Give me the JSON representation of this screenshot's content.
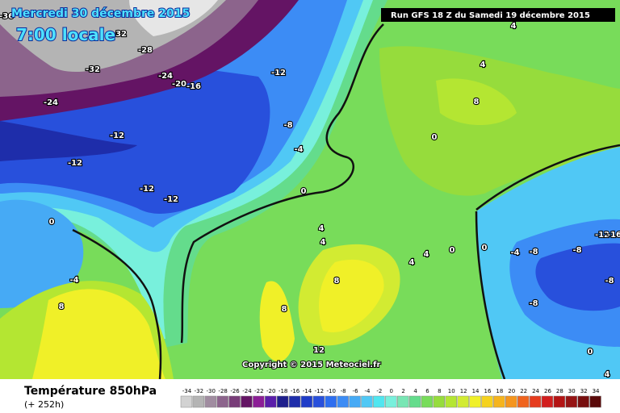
{
  "header": {
    "date": "Mercredi 30 décembre 2015",
    "time": "7:00 locale",
    "run": "Run GFS 18 Z du Samedi 19 décembre 2015"
  },
  "copyright": "Copyright © 2015 Meteociel.fr",
  "footer": {
    "title": "Température 850hPa",
    "lead": "(+ 252h)"
  },
  "legend": {
    "values": [
      -34,
      -32,
      -30,
      -28,
      -26,
      -24,
      -22,
      -20,
      -18,
      -16,
      -14,
      -12,
      -10,
      -8,
      -6,
      -4,
      -2,
      0,
      2,
      4,
      6,
      8,
      10,
      12,
      14,
      16,
      18,
      20,
      22,
      24,
      26,
      28,
      30,
      32,
      34
    ],
    "colors": [
      "#d2d2d2",
      "#b4b4b4",
      "#a08ca0",
      "#8c648c",
      "#783c78",
      "#641464",
      "#8c1e96",
      "#5a1eaa",
      "#1e1e8c",
      "#1e2daa",
      "#1e3cc8",
      "#2850dc",
      "#2d6ef0",
      "#3c8cf5",
      "#46aaf5",
      "#50c8f5",
      "#50e6f0",
      "#78f0dc",
      "#78e6b4",
      "#64dc8c",
      "#78dc5a",
      "#96dc3c",
      "#b4e632",
      "#d2eb32",
      "#f0f028",
      "#f5d21e",
      "#f5b41e",
      "#f5961e",
      "#f0641e",
      "#e63c1e",
      "#d21e1e",
      "#b41414",
      "#961414",
      "#780f0f",
      "#5a0a0a"
    ]
  },
  "map_labels": [
    "-36",
    "-32",
    "-28",
    "-32",
    "-24",
    "-20",
    "-16",
    "-24",
    "-12",
    "-12",
    "-8",
    "-4",
    "-12",
    "-12",
    "-12",
    "0",
    "4",
    "0",
    "-4",
    "8",
    "8",
    "8",
    "4",
    "4",
    "0",
    "0",
    "-4",
    "-8",
    "-8",
    "-12",
    "-16",
    "-8",
    "-8",
    "12",
    "4",
    "8",
    "0",
    "4",
    "0",
    "4",
    "4"
  ]
}
